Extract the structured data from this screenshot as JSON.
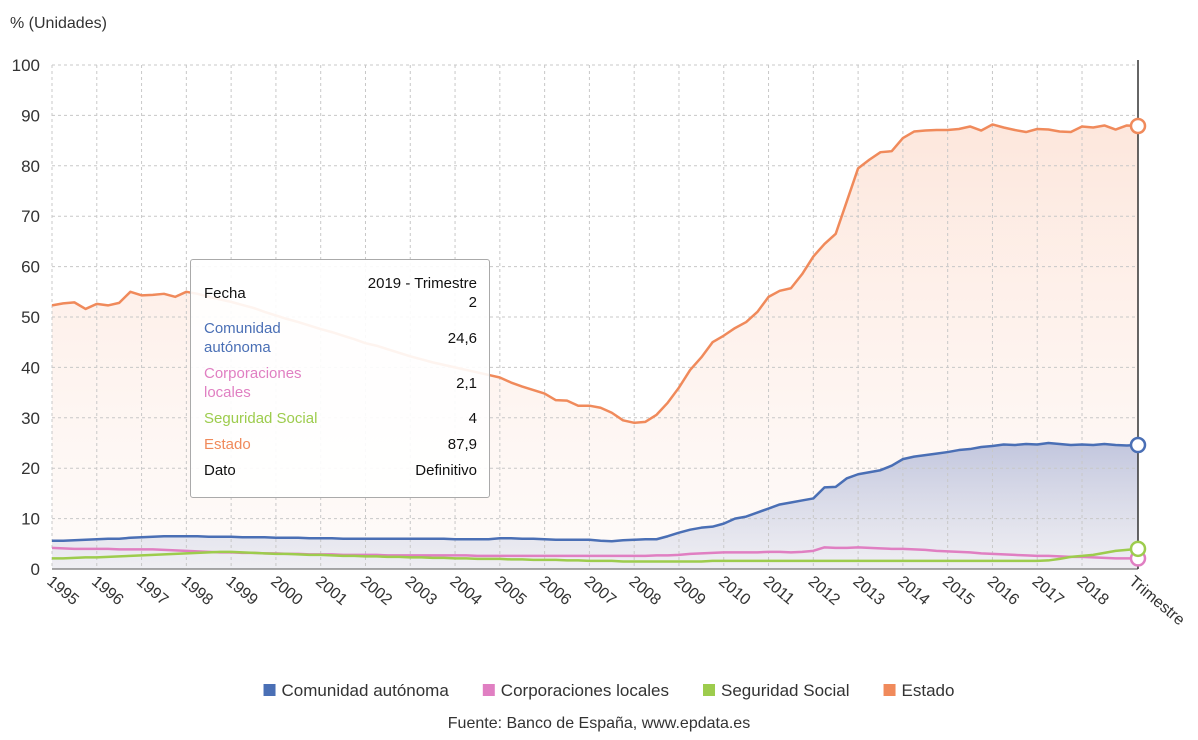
{
  "chart_data": {
    "type": "line",
    "y_label": "% (Unidades)",
    "x_label": "Trimestre",
    "source": "Fuente: Banco de España, www.epdata.es",
    "ylim": [
      0,
      100
    ],
    "yticks": [
      0,
      10,
      20,
      30,
      40,
      50,
      60,
      70,
      80,
      90,
      100
    ],
    "grid": true,
    "legend": "bottom",
    "categories": [
      "1995",
      null,
      null,
      null,
      "1996",
      null,
      null,
      null,
      "1997",
      null,
      null,
      null,
      "1998",
      null,
      null,
      null,
      "1999",
      null,
      null,
      null,
      "2000",
      null,
      null,
      null,
      "2001",
      null,
      null,
      null,
      "2002",
      null,
      null,
      null,
      "2003",
      null,
      null,
      null,
      "2004",
      null,
      null,
      null,
      "2005",
      null,
      null,
      null,
      "2006",
      null,
      null,
      null,
      "2007",
      null,
      null,
      null,
      "2008",
      null,
      null,
      null,
      "2009",
      null,
      null,
      null,
      "2010",
      null,
      null,
      null,
      "2011",
      null,
      null,
      null,
      "2012",
      null,
      null,
      null,
      "2013",
      null,
      null,
      null,
      "2014",
      null,
      null,
      null,
      "2015",
      null,
      null,
      null,
      "2016",
      null,
      null,
      null,
      "2017",
      null,
      null,
      null,
      "2018",
      null,
      null,
      null,
      null,
      null
    ],
    "series": [
      {
        "name": "Comunidad autónoma",
        "color": "#4a6fb5",
        "values": [
          5.6,
          5.6,
          5.7,
          5.8,
          5.9,
          6.0,
          6.0,
          6.2,
          6.3,
          6.4,
          6.5,
          6.5,
          6.5,
          6.5,
          6.4,
          6.4,
          6.4,
          6.3,
          6.3,
          6.3,
          6.2,
          6.2,
          6.2,
          6.1,
          6.1,
          6.1,
          6.0,
          6.0,
          6.0,
          6.0,
          6.0,
          6.0,
          6.0,
          6.0,
          6.0,
          6.0,
          5.9,
          5.9,
          5.9,
          5.9,
          6.1,
          6.1,
          6.0,
          6.0,
          5.9,
          5.8,
          5.8,
          5.8,
          5.8,
          5.6,
          5.5,
          5.7,
          5.8,
          5.9,
          5.9,
          6.5,
          7.2,
          7.8,
          8.2,
          8.4,
          9.0,
          10.0,
          10.4,
          11.2,
          12.0,
          12.8,
          13.2,
          13.6,
          14.0,
          16.2,
          16.3,
          18.0,
          18.8,
          19.2,
          19.6,
          20.5,
          21.8,
          22.3,
          22.6,
          22.9,
          23.2,
          23.6,
          23.8,
          24.2,
          24.4,
          24.7,
          24.6,
          24.8,
          24.7,
          25.0,
          24.8,
          24.6,
          24.7,
          24.6,
          24.8,
          24.6,
          24.5,
          24.6
        ]
      },
      {
        "name": "Corporaciones locales",
        "color": "#e07fc2",
        "values": [
          4.2,
          4.1,
          4.0,
          4.0,
          4.0,
          4.0,
          3.9,
          3.9,
          3.9,
          3.9,
          3.8,
          3.7,
          3.6,
          3.5,
          3.4,
          3.3,
          3.3,
          3.2,
          3.2,
          3.1,
          3.1,
          3.0,
          3.0,
          2.9,
          2.9,
          2.9,
          2.8,
          2.8,
          2.8,
          2.8,
          2.7,
          2.7,
          2.7,
          2.7,
          2.7,
          2.7,
          2.7,
          2.7,
          2.6,
          2.6,
          2.6,
          2.6,
          2.6,
          2.6,
          2.6,
          2.6,
          2.6,
          2.6,
          2.6,
          2.6,
          2.6,
          2.6,
          2.6,
          2.6,
          2.7,
          2.7,
          2.8,
          3.0,
          3.1,
          3.2,
          3.3,
          3.3,
          3.3,
          3.3,
          3.4,
          3.4,
          3.3,
          3.4,
          3.6,
          4.3,
          4.2,
          4.2,
          4.3,
          4.2,
          4.1,
          4.0,
          4.0,
          3.9,
          3.8,
          3.6,
          3.5,
          3.4,
          3.3,
          3.1,
          3.0,
          2.9,
          2.8,
          2.7,
          2.6,
          2.6,
          2.5,
          2.4,
          2.4,
          2.3,
          2.2,
          2.1,
          2.1,
          2.1
        ]
      },
      {
        "name": "Seguridad Social",
        "color": "#9dcc4d",
        "values": [
          2.1,
          2.1,
          2.2,
          2.3,
          2.3,
          2.4,
          2.5,
          2.6,
          2.7,
          2.8,
          2.9,
          3.0,
          3.1,
          3.2,
          3.3,
          3.4,
          3.4,
          3.3,
          3.2,
          3.1,
          3.0,
          3.0,
          2.9,
          2.8,
          2.8,
          2.7,
          2.6,
          2.6,
          2.5,
          2.5,
          2.4,
          2.4,
          2.3,
          2.3,
          2.2,
          2.2,
          2.1,
          2.1,
          2.0,
          2.0,
          2.0,
          1.9,
          1.9,
          1.8,
          1.8,
          1.8,
          1.7,
          1.7,
          1.6,
          1.6,
          1.6,
          1.5,
          1.5,
          1.5,
          1.5,
          1.5,
          1.5,
          1.5,
          1.5,
          1.6,
          1.6,
          1.6,
          1.6,
          1.6,
          1.6,
          1.6,
          1.6,
          1.6,
          1.6,
          1.6,
          1.6,
          1.6,
          1.6,
          1.6,
          1.6,
          1.6,
          1.6,
          1.6,
          1.6,
          1.6,
          1.6,
          1.6,
          1.6,
          1.6,
          1.6,
          1.6,
          1.6,
          1.6,
          1.6,
          1.7,
          2.0,
          2.4,
          2.6,
          2.8,
          3.2,
          3.6,
          3.8,
          4.0
        ]
      },
      {
        "name": "Estado",
        "color": "#f08a5b",
        "values": [
          52.3,
          52.7,
          52.9,
          51.6,
          52.6,
          52.3,
          52.8,
          55.0,
          54.3,
          54.4,
          54.6,
          54.0,
          55.0,
          54.6,
          54.0,
          53.5,
          53.0,
          52.4,
          51.8,
          51.0,
          50.3,
          49.6,
          49.0,
          48.3,
          47.6,
          47.0,
          46.3,
          45.6,
          44.8,
          44.3,
          43.6,
          42.9,
          42.2,
          41.6,
          41.0,
          40.5,
          40.0,
          39.5,
          39.0,
          38.5,
          38.0,
          37.0,
          36.2,
          35.5,
          34.8,
          33.5,
          33.4,
          32.4,
          32.4,
          32.0,
          31.0,
          29.5,
          29.0,
          29.2,
          30.6,
          33.0,
          36.0,
          39.5,
          42.0,
          45.0,
          46.3,
          47.8,
          49.0,
          51.0,
          54.0,
          55.2,
          55.7,
          58.5,
          62.0,
          64.5,
          66.5,
          73.0,
          79.5,
          81.2,
          82.7,
          82.9,
          85.5,
          86.8,
          87.0,
          87.1,
          87.1,
          87.3,
          87.8,
          87.0,
          88.2,
          87.6,
          87.1,
          86.7,
          87.3,
          87.2,
          86.8,
          86.7,
          87.8,
          87.6,
          88.0,
          87.2,
          88.0,
          87.9
        ]
      }
    ],
    "tooltip": {
      "rows": [
        {
          "label": "Fecha",
          "value": "2019 - Trimestre 2",
          "color": "#111111"
        },
        {
          "label": "Comunidad autónoma",
          "value": "24,6",
          "color": "#4a6fb5"
        },
        {
          "label": "Corporaciones locales",
          "value": "2,1",
          "color": "#e07fc2"
        },
        {
          "label": "Seguridad Social",
          "value": "4",
          "color": "#9dcc4d"
        },
        {
          "label": "Estado",
          "value": "87,9",
          "color": "#f08a5b"
        },
        {
          "label": "Dato",
          "value": "Definitivo",
          "color": "#111111"
        }
      ]
    }
  }
}
